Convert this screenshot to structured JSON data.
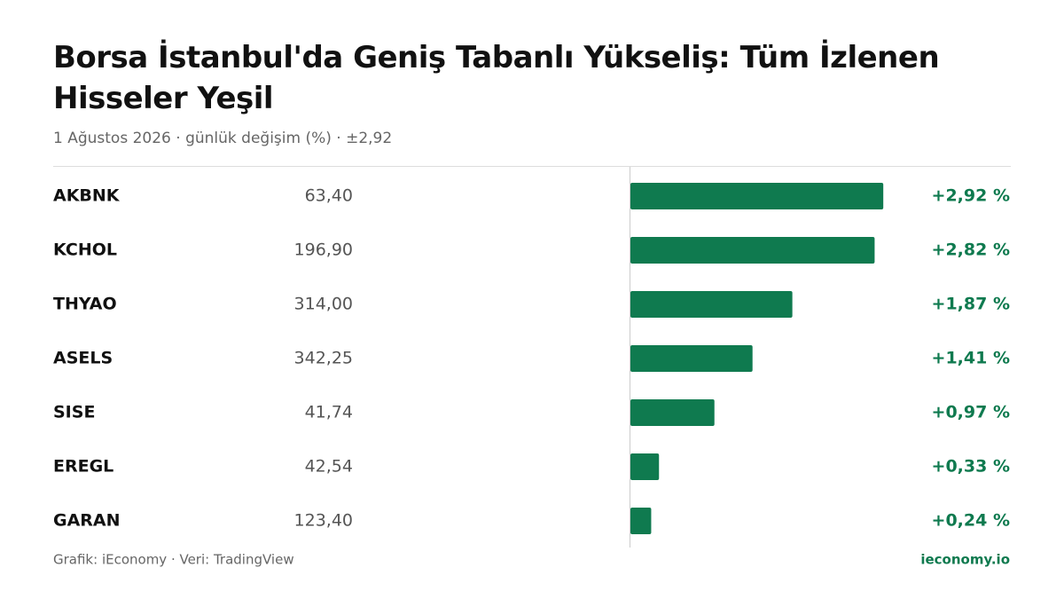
{
  "chart_data": {
    "type": "bar",
    "orientation": "horizontal",
    "title": "Borsa İstanbul'da Geniş Tabanlı Yükseliş: Tüm İzlenen Hisseler Yeşil",
    "subtitle": "1 Ağustos 2026 · günlük değişim (%) · ±2,92",
    "categories": [
      "AKBNK",
      "KCHOL",
      "THYAO",
      "ASELS",
      "SISE",
      "EREGL",
      "GARAN"
    ],
    "prices": [
      "63,40",
      "196,90",
      "314,00",
      "342,25",
      "41,74",
      "42,54",
      "123,40"
    ],
    "values": [
      2.92,
      2.82,
      1.87,
      1.41,
      0.97,
      0.33,
      0.24
    ],
    "value_labels": [
      "+2,92 %",
      "+2,82 %",
      "+1,87 %",
      "+1,41 %",
      "+0,97 %",
      "+0,33 %",
      "+0,24 %"
    ],
    "color": "#0f7a4f",
    "xlim": [
      0,
      3
    ],
    "source": "Grafik: iEconomy · Veri: TradingView",
    "brand": "ieconomy.io"
  }
}
